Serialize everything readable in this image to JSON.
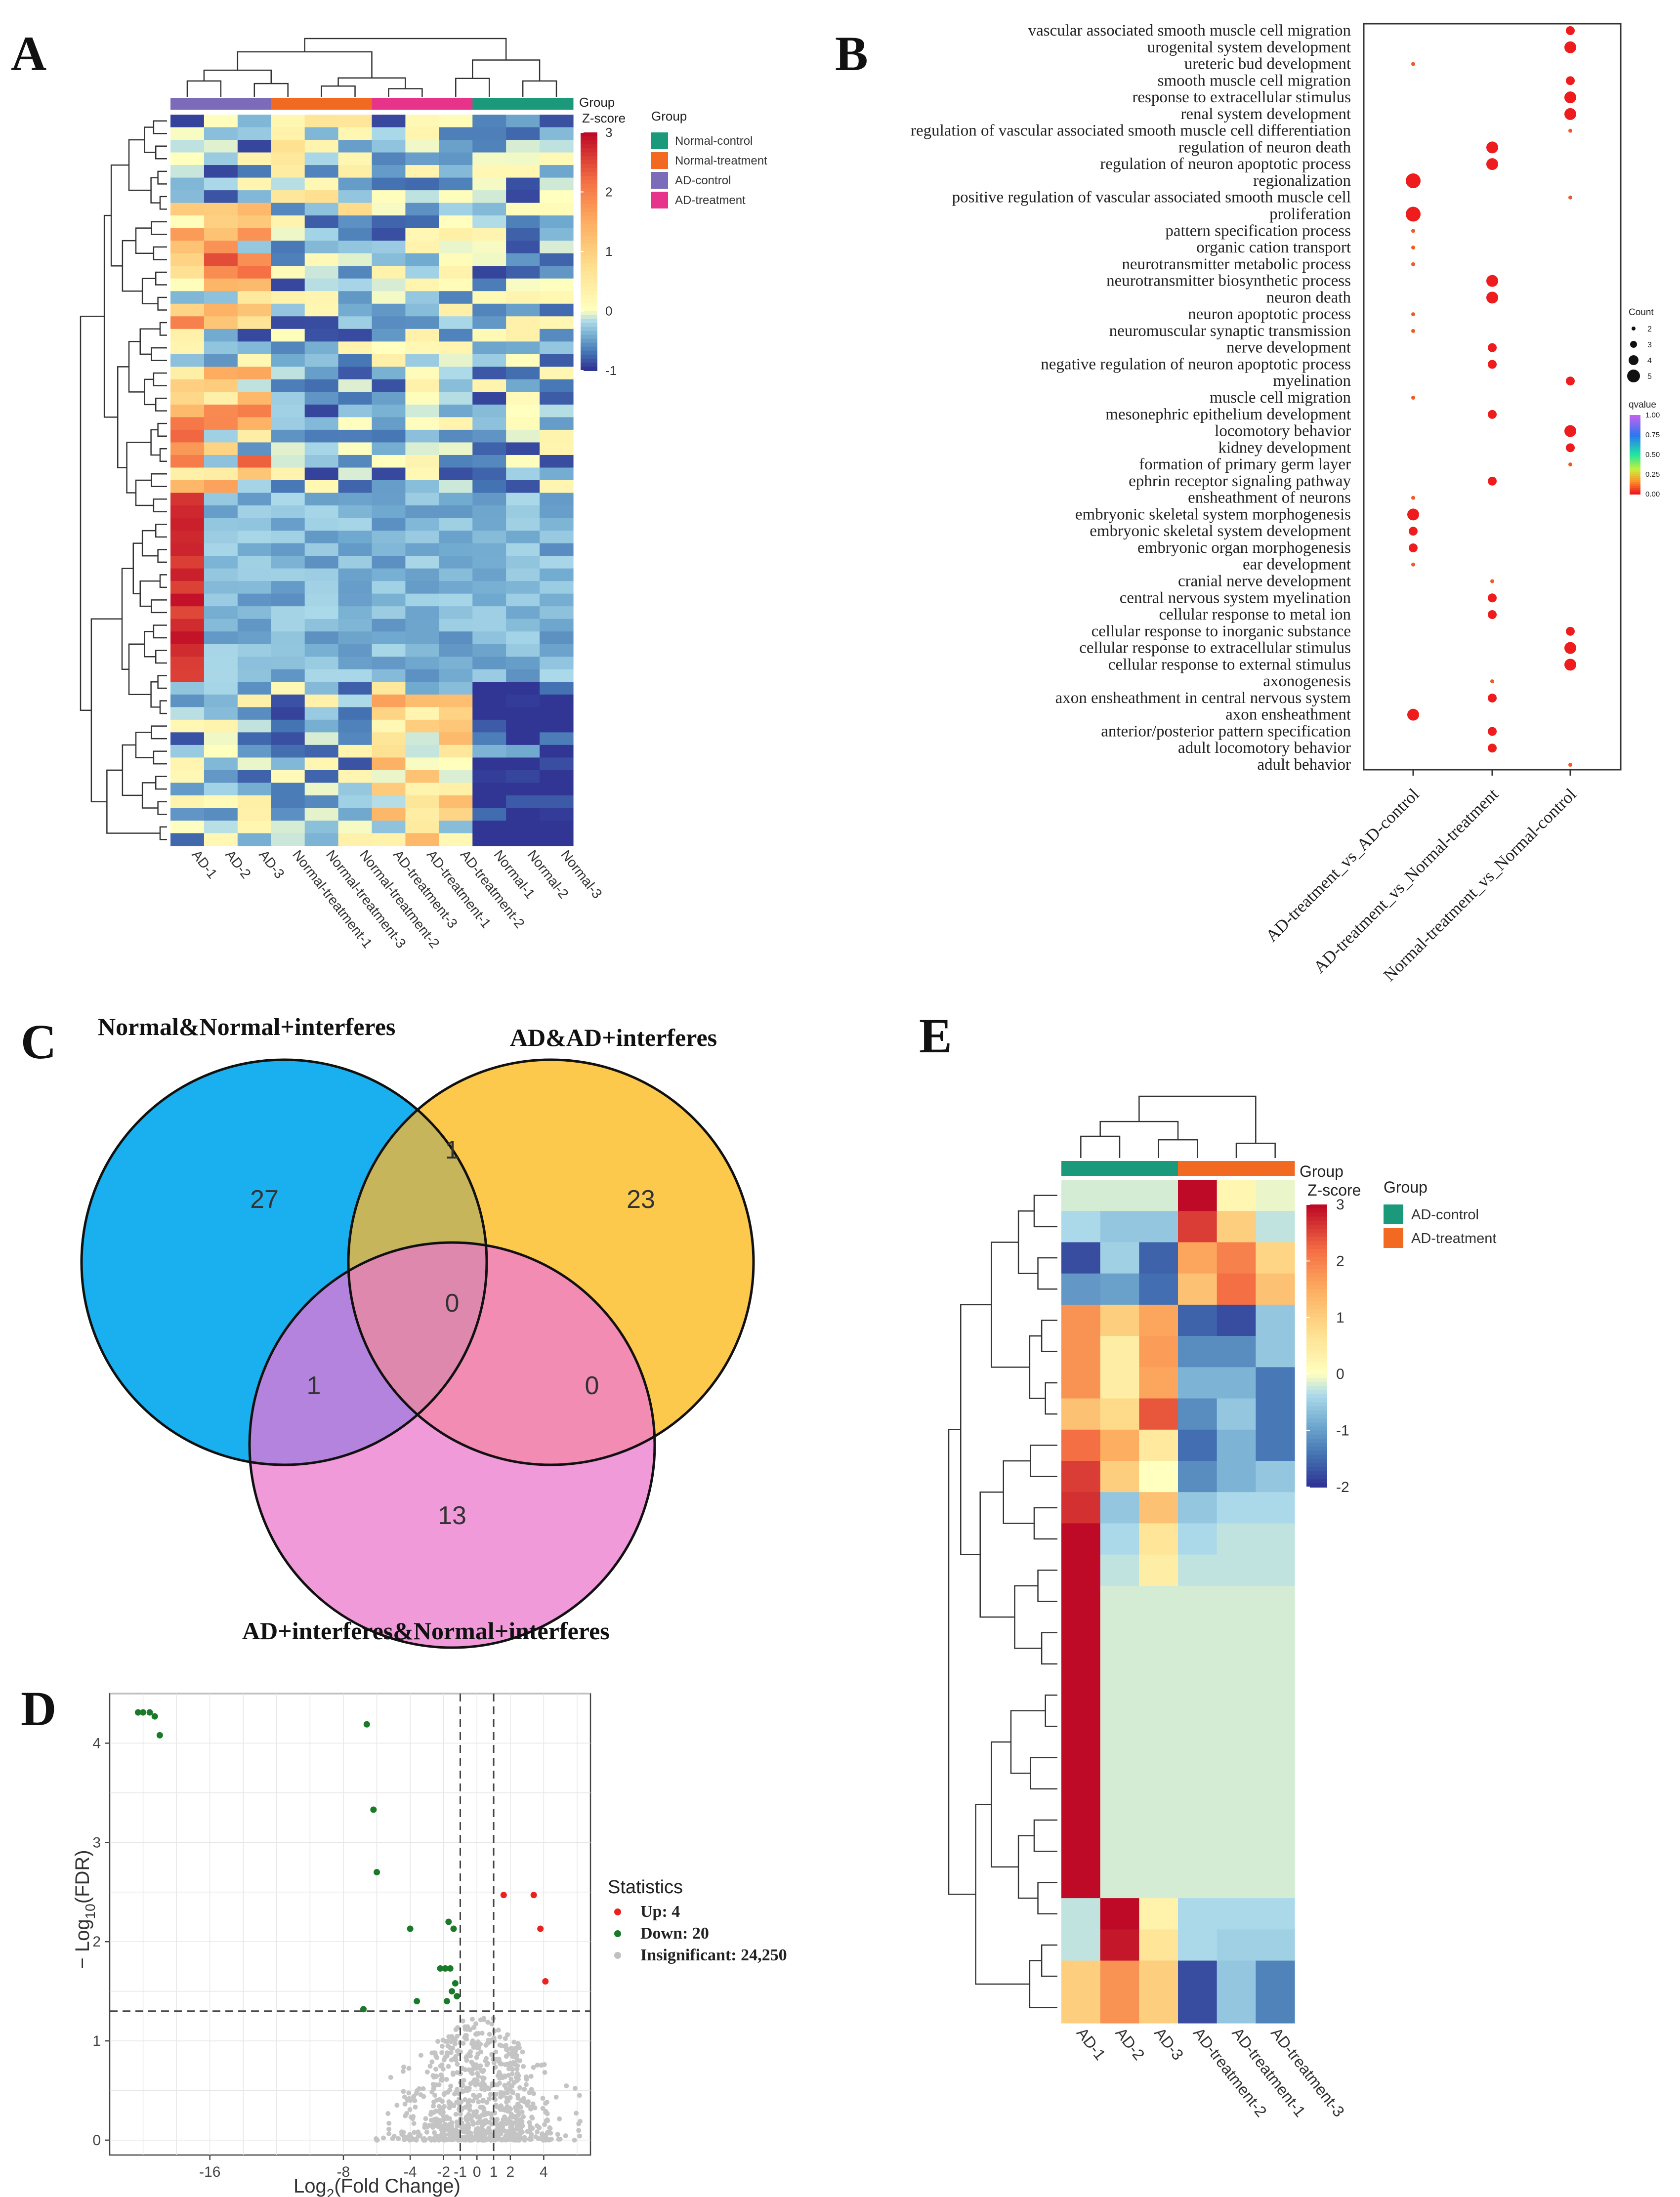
{
  "panels": {
    "A": {
      "letter": "A",
      "chart_data": {
        "type": "heatmap",
        "title": "",
        "columns": [
          "AD-1",
          "AD-2",
          "AD-3",
          "Normal-treatment-1",
          "Normal-treatment-3",
          "Normal-treatment-2",
          "AD-treatment-3",
          "AD-treatment-1",
          "AD-treatment-2",
          "Normal-1",
          "Normal-2",
          "Normal-3"
        ],
        "column_groups": [
          "AD-control",
          "AD-control",
          "AD-control",
          "Normal-treatment",
          "Normal-treatment",
          "Normal-treatment",
          "AD-treatment",
          "AD-treatment",
          "AD-treatment",
          "Normal-control",
          "Normal-control",
          "Normal-control"
        ],
        "row_count": 58,
        "group_header": "Group",
        "zscore_label": "Z-score",
        "color_range": [
          -1,
          3
        ],
        "colorbar_ticks": [
          "3",
          "2",
          "1",
          "0",
          "-1"
        ],
        "legend_title": "Group",
        "legend": [
          {
            "name": "Normal-control",
            "color": "#1a9a7b"
          },
          {
            "name": "Normal-treatment",
            "color": "#f26a21"
          },
          {
            "name": "AD-control",
            "color": "#7b6bb8"
          },
          {
            "name": "AD-treatment",
            "color": "#e8338a"
          }
        ]
      }
    },
    "B": {
      "letter": "B",
      "chart_data": {
        "type": "scatter",
        "title": "",
        "x_categories": [
          "AD-treatment_vs_AD-control",
          "AD-treatment_vs_Normal-treatment",
          "Normal-treatment_vs_Normal-control"
        ],
        "terms": [
          "vascular associated smooth muscle cell migration",
          "urogenital system development",
          "ureteric bud development",
          "smooth muscle cell migration",
          "response to extracellular stimulus",
          "renal system development",
          "regulation of vascular associated smooth muscle cell differentiation",
          "regulation of neuron death",
          "regulation of neuron apoptotic process",
          "regionalization",
          "positive regulation of vascular associated smooth muscle cell",
          "proliferation",
          "pattern specification process",
          "organic cation transport",
          "neurotransmitter metabolic process",
          "neurotransmitter biosynthetic process",
          "neuron death",
          "neuron apoptotic process",
          "neuromuscular synaptic transmission",
          "nerve development",
          "negative regulation of neuron apoptotic process",
          "myelination",
          "muscle cell migration",
          "mesonephric epithelium development",
          "locomotory behavior",
          "kidney development",
          "formation of primary germ layer",
          "ephrin receptor signaling pathway",
          "ensheathment of neurons",
          "embryonic skeletal system morphogenesis",
          "embryonic skeletal system development",
          "embryonic organ morphogenesis",
          "ear development",
          "cranial nerve development",
          "central nervous system myelination",
          "cellular response to metal ion",
          "cellular response to inorganic substance",
          "cellular response to extracellular stimulus",
          "cellular response to external stimulus",
          "axonogenesis",
          "axon ensheathment in central nervous system",
          "axon ensheathment",
          "anterior/posterior pattern specification",
          "adult locomotory behavior",
          "adult behavior"
        ],
        "points": [
          {
            "term": 0,
            "x": 2,
            "count": 3
          },
          {
            "term": 1,
            "x": 2,
            "count": 4
          },
          {
            "term": 2,
            "x": 0,
            "count": 1
          },
          {
            "term": 3,
            "x": 2,
            "count": 3
          },
          {
            "term": 4,
            "x": 2,
            "count": 4
          },
          {
            "term": 5,
            "x": 2,
            "count": 4
          },
          {
            "term": 6,
            "x": 2,
            "count": 1
          },
          {
            "term": 7,
            "x": 1,
            "count": 4
          },
          {
            "term": 8,
            "x": 1,
            "count": 4
          },
          {
            "term": 9,
            "x": 0,
            "count": 5
          },
          {
            "term": 10,
            "x": 2,
            "count": 1
          },
          {
            "term": 11,
            "x": 0,
            "count": 5
          },
          {
            "term": 12,
            "x": 0,
            "count": 1
          },
          {
            "term": 13,
            "x": 0,
            "count": 1
          },
          {
            "term": 14,
            "x": 0,
            "count": 1
          },
          {
            "term": 15,
            "x": 1,
            "count": 4
          },
          {
            "term": 16,
            "x": 1,
            "count": 4
          },
          {
            "term": 17,
            "x": 0,
            "count": 1
          },
          {
            "term": 18,
            "x": 0,
            "count": 1
          },
          {
            "term": 19,
            "x": 1,
            "count": 3
          },
          {
            "term": 20,
            "x": 1,
            "count": 3
          },
          {
            "term": 21,
            "x": 2,
            "count": 3
          },
          {
            "term": 22,
            "x": 0,
            "count": 1
          },
          {
            "term": 23,
            "x": 1,
            "count": 3
          },
          {
            "term": 24,
            "x": 2,
            "count": 4
          },
          {
            "term": 25,
            "x": 2,
            "count": 3
          },
          {
            "term": 26,
            "x": 2,
            "count": 1
          },
          {
            "term": 27,
            "x": 1,
            "count": 3
          },
          {
            "term": 28,
            "x": 0,
            "count": 1
          },
          {
            "term": 29,
            "x": 0,
            "count": 4
          },
          {
            "term": 30,
            "x": 0,
            "count": 3
          },
          {
            "term": 31,
            "x": 0,
            "count": 3
          },
          {
            "term": 32,
            "x": 0,
            "count": 1
          },
          {
            "term": 33,
            "x": 1,
            "count": 1
          },
          {
            "term": 34,
            "x": 1,
            "count": 3
          },
          {
            "term": 35,
            "x": 1,
            "count": 3
          },
          {
            "term": 36,
            "x": 2,
            "count": 3
          },
          {
            "term": 37,
            "x": 2,
            "count": 4
          },
          {
            "term": 38,
            "x": 2,
            "count": 4
          },
          {
            "term": 39,
            "x": 1,
            "count": 1
          },
          {
            "term": 40,
            "x": 1,
            "count": 3
          },
          {
            "term": 41,
            "x": 0,
            "count": 4
          },
          {
            "term": 42,
            "x": 1,
            "count": 3
          },
          {
            "term": 43,
            "x": 1,
            "count": 3
          },
          {
            "term": 44,
            "x": 2,
            "count": 1
          }
        ],
        "legend_size_title": "Count",
        "legend_size_values": [
          "2",
          "3",
          "4",
          "5"
        ],
        "legend_color_title": "qvalue",
        "legend_color_ticks": [
          "1.00",
          "0.75",
          "0.50",
          "0.25",
          "0.00"
        ],
        "color_range": [
          0,
          1
        ]
      }
    },
    "C": {
      "letter": "C",
      "chart_data": {
        "type": "venn",
        "sets": [
          {
            "name": "Normal&Normal+interferes",
            "color": "#1ab0f0"
          },
          {
            "name": "AD&AD+interferes",
            "color": "#fcc94d"
          },
          {
            "name": "AD+interferes&Normal+interferes",
            "color": "#f09ad9"
          }
        ],
        "regions": {
          "only_1": "27",
          "only_2": "23",
          "only_3": "13",
          "1_2": "1",
          "1_3": "1",
          "2_3": "0",
          "1_2_3": "0"
        }
      }
    },
    "D": {
      "letter": "D",
      "chart_data": {
        "type": "scatter",
        "title": "",
        "xlabel_main": "Log",
        "xlabel_sub": "2",
        "xlabel_rest": "(Fold Change)",
        "ylabel_prefix": "− Log",
        "ylabel_sub": "10",
        "ylabel_rest": "(FDR)",
        "xlim": [
          -22,
          6.8
        ],
        "ylim": [
          -0.15,
          4.5
        ],
        "x_ticks": [
          "-16",
          "-8",
          "-4",
          "-2",
          "-1",
          "0",
          "1",
          "2",
          "4"
        ],
        "x_tick_values": [
          -16,
          -8,
          -4,
          -2,
          -1,
          0,
          1,
          2,
          4
        ],
        "y_ticks": [
          "0",
          "1",
          "2",
          "3",
          "4"
        ],
        "y_tick_values": [
          0,
          1,
          2,
          3,
          4
        ],
        "thresholds": {
          "x": [
            -1,
            1
          ],
          "y": 1.3
        },
        "legend_title": "Statistics",
        "legend": [
          {
            "label": "Up: 4",
            "color": "#e8231f"
          },
          {
            "label": "Down: 20",
            "color": "#1a7a2a"
          },
          {
            "label": "Insignificant: 24,250",
            "color": "#c0c0c0"
          }
        ],
        "up": [
          [
            1.6,
            2.47
          ],
          [
            3.4,
            2.47
          ],
          [
            3.8,
            2.13
          ],
          [
            4.1,
            1.6
          ]
        ],
        "down": [
          [
            -20.3,
            4.31
          ],
          [
            -20.0,
            4.31
          ],
          [
            -19.6,
            4.31
          ],
          [
            -19.3,
            4.27
          ],
          [
            -19.0,
            4.08
          ],
          [
            -6.6,
            4.19
          ],
          [
            -6.2,
            3.33
          ],
          [
            -6.0,
            2.7
          ],
          [
            -4.0,
            2.13
          ],
          [
            -1.7,
            2.2
          ],
          [
            -1.4,
            2.13
          ],
          [
            -2.2,
            1.73
          ],
          [
            -1.9,
            1.73
          ],
          [
            -1.6,
            1.73
          ],
          [
            -3.6,
            1.4
          ],
          [
            -1.8,
            1.4
          ],
          [
            -6.8,
            1.32
          ],
          [
            -1.3,
            1.58
          ],
          [
            -1.5,
            1.5
          ],
          [
            -1.2,
            1.45
          ]
        ]
      }
    },
    "E": {
      "letter": "E",
      "chart_data": {
        "type": "heatmap",
        "title": "",
        "columns": [
          "AD-1",
          "AD-2",
          "AD-3",
          "AD-treatment-2",
          "AD-treatment-1",
          "AD-treatment-3"
        ],
        "column_groups": [
          "AD-control",
          "AD-control",
          "AD-control",
          "AD-treatment",
          "AD-treatment",
          "AD-treatment"
        ],
        "row_count": 27,
        "group_header": "Group",
        "zscore_label": "Z-score",
        "color_range": [
          -2,
          3
        ],
        "colorbar_ticks": [
          "3",
          "2",
          "1",
          "0",
          "-1",
          "-2"
        ],
        "legend_title": "Group",
        "legend": [
          {
            "name": "AD-control",
            "color": "#1a9a7b"
          },
          {
            "name": "AD-treatment",
            "color": "#f26a21"
          }
        ],
        "values": [
          [
            -0.2,
            -0.2,
            -0.2,
            3.0,
            0.2,
            -0.1
          ],
          [
            -0.4,
            -0.6,
            -0.6,
            2.6,
            1.0,
            -0.3
          ],
          [
            -1.8,
            -0.5,
            -1.6,
            1.6,
            2.0,
            0.9
          ],
          [
            -1.1,
            -1.0,
            -1.5,
            1.2,
            2.2,
            1.2
          ],
          [
            1.8,
            1.0,
            1.6,
            -1.6,
            -1.8,
            -0.6
          ],
          [
            1.8,
            0.4,
            1.7,
            -1.2,
            -1.2,
            -0.6
          ],
          [
            1.8,
            0.4,
            1.6,
            -0.8,
            -0.8,
            -1.4
          ],
          [
            1.2,
            0.8,
            2.4,
            -1.2,
            -0.6,
            -1.4
          ],
          [
            2.2,
            1.5,
            0.5,
            -1.5,
            -0.8,
            -1.4
          ],
          [
            2.6,
            1.0,
            0.0,
            -1.2,
            -0.8,
            -0.6
          ],
          [
            2.7,
            -0.6,
            1.2,
            -0.6,
            -0.4,
            -0.4
          ],
          [
            3.0,
            -0.4,
            0.6,
            -0.4,
            -0.3,
            -0.3
          ],
          [
            3.0,
            -0.3,
            0.4,
            -0.3,
            -0.3,
            -0.3
          ],
          [
            3.0,
            -0.2,
            -0.2,
            -0.2,
            -0.2,
            -0.2
          ],
          [
            3.0,
            -0.2,
            -0.2,
            -0.2,
            -0.2,
            -0.2
          ],
          [
            3.0,
            -0.2,
            -0.2,
            -0.2,
            -0.2,
            -0.2
          ],
          [
            3.0,
            -0.2,
            -0.2,
            -0.2,
            -0.2,
            -0.2
          ],
          [
            3.0,
            -0.2,
            -0.2,
            -0.2,
            -0.2,
            -0.2
          ],
          [
            3.0,
            -0.2,
            -0.2,
            -0.2,
            -0.2,
            -0.2
          ],
          [
            3.0,
            -0.2,
            -0.2,
            -0.2,
            -0.2,
            -0.2
          ],
          [
            3.0,
            -0.2,
            -0.2,
            -0.2,
            -0.2,
            -0.2
          ],
          [
            3.0,
            -0.2,
            -0.2,
            -0.2,
            -0.2,
            -0.2
          ],
          [
            3.0,
            -0.2,
            -0.2,
            -0.2,
            -0.2,
            -0.2
          ],
          [
            -0.3,
            3.0,
            0.3,
            -0.4,
            -0.4,
            -0.4
          ],
          [
            -0.3,
            2.9,
            0.6,
            -0.4,
            -0.5,
            -0.5
          ],
          [
            1.0,
            1.8,
            1.0,
            -1.8,
            -0.6,
            -1.3
          ],
          [
            1.0,
            1.8,
            1.0,
            -1.8,
            -0.6,
            -1.3
          ]
        ]
      }
    }
  }
}
